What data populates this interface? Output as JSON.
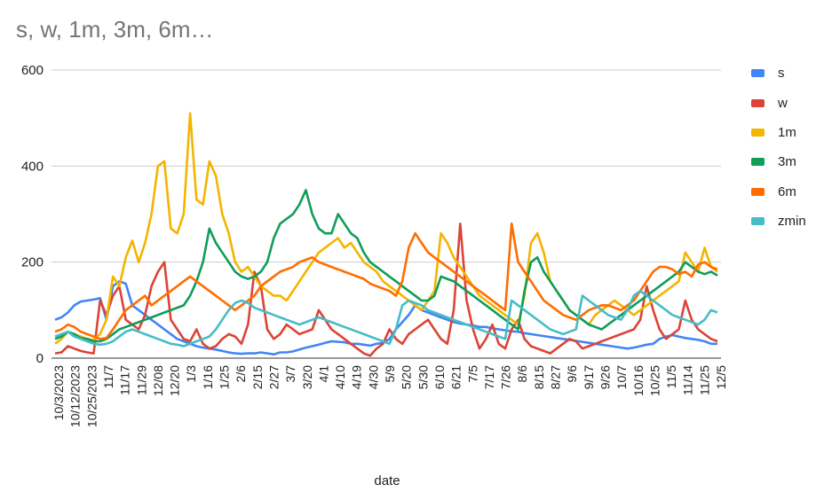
{
  "chart_data": {
    "type": "line",
    "title": "s, w, 1m, 3m, 6m…",
    "xlabel": "date",
    "ylabel": "",
    "ylim": [
      0,
      600
    ],
    "yticks": [
      0,
      200,
      400,
      600
    ],
    "grid": true,
    "legend_position": "right",
    "x_tick_labels": [
      "10/3/2023",
      "10/12/2023",
      "10/25/2023",
      "11/7",
      "11/17",
      "11/29",
      "12/08",
      "12/20",
      "1/3",
      "1/16",
      "1/25",
      "2/6",
      "2/15",
      "2/27",
      "3/7",
      "3/20",
      "4/1",
      "4/10",
      "4/19",
      "4/30",
      "5/9",
      "5/20",
      "5/30",
      "6/10",
      "6/21",
      "7/5",
      "7/17",
      "7/26",
      "8/6",
      "8/15",
      "8/27",
      "9/6",
      "9/17",
      "9/26",
      "10/7",
      "10/16",
      "10/25",
      "11/5",
      "11/14",
      "11/25",
      "12/5"
    ],
    "series": [
      {
        "name": "s",
        "color": "#4285f4",
        "values": [
          80,
          85,
          95,
          110,
          118,
          120,
          122,
          125,
          80,
          150,
          160,
          155,
          110,
          100,
          90,
          80,
          70,
          60,
          50,
          40,
          35,
          30,
          25,
          22,
          20,
          18,
          15,
          12,
          10,
          9,
          10,
          10,
          12,
          10,
          8,
          12,
          12,
          14,
          18,
          22,
          25,
          28,
          32,
          35,
          34,
          33,
          30,
          30,
          28,
          26,
          30,
          32,
          40,
          60,
          75,
          90,
          110,
          100,
          95,
          90,
          85,
          80,
          75,
          72,
          70,
          68,
          65,
          65,
          62,
          60,
          58,
          56,
          55,
          52,
          50,
          48,
          46,
          44,
          42,
          40,
          38,
          36,
          34,
          32,
          30,
          28,
          26,
          24,
          22,
          20,
          22,
          25,
          28,
          30,
          40,
          45,
          48,
          45,
          42,
          40,
          38,
          35,
          30,
          30
        ]
      },
      {
        "name": "w",
        "color": "#db4437",
        "values": [
          10,
          12,
          25,
          20,
          15,
          12,
          10,
          120,
          90,
          130,
          150,
          80,
          70,
          60,
          90,
          150,
          180,
          200,
          80,
          60,
          40,
          35,
          60,
          30,
          20,
          25,
          40,
          50,
          45,
          30,
          70,
          180,
          150,
          60,
          40,
          50,
          70,
          60,
          50,
          55,
          60,
          100,
          80,
          60,
          50,
          40,
          30,
          20,
          10,
          5,
          20,
          30,
          60,
          40,
          30,
          50,
          60,
          70,
          80,
          60,
          40,
          30,
          100,
          280,
          120,
          60,
          20,
          40,
          70,
          30,
          20,
          60,
          80,
          40,
          25,
          20,
          15,
          10,
          20,
          30,
          40,
          35,
          20,
          25,
          30,
          35,
          40,
          45,
          50,
          55,
          60,
          80,
          150,
          100,
          60,
          40,
          50,
          60,
          120,
          80,
          60,
          50,
          40,
          35
        ]
      },
      {
        "name": "1m",
        "color": "#f4b400",
        "values": [
          30,
          40,
          55,
          50,
          45,
          40,
          38,
          50,
          80,
          170,
          150,
          210,
          245,
          200,
          240,
          300,
          400,
          410,
          270,
          260,
          300,
          510,
          330,
          320,
          410,
          380,
          300,
          260,
          200,
          180,
          190,
          170,
          150,
          140,
          130,
          130,
          120,
          140,
          160,
          180,
          200,
          220,
          230,
          240,
          250,
          230,
          240,
          220,
          200,
          190,
          180,
          160,
          150,
          140,
          130,
          120,
          110,
          100,
          120,
          140,
          260,
          240,
          210,
          190,
          170,
          150,
          130,
          120,
          110,
          100,
          90,
          80,
          70,
          130,
          240,
          260,
          220,
          160,
          140,
          120,
          100,
          90,
          80,
          70,
          90,
          100,
          110,
          120,
          110,
          100,
          90,
          100,
          110,
          120,
          130,
          140,
          150,
          160,
          220,
          200,
          180,
          230,
          190,
          180
        ]
      },
      {
        "name": "3m",
        "color": "#0f9d58",
        "values": [
          40,
          45,
          55,
          50,
          42,
          40,
          35,
          35,
          40,
          50,
          60,
          65,
          70,
          75,
          80,
          85,
          90,
          95,
          100,
          105,
          110,
          130,
          160,
          200,
          270,
          240,
          220,
          200,
          180,
          170,
          165,
          170,
          180,
          200,
          250,
          280,
          290,
          300,
          320,
          350,
          300,
          270,
          260,
          260,
          300,
          280,
          260,
          250,
          220,
          200,
          190,
          180,
          170,
          160,
          150,
          140,
          130,
          120,
          120,
          130,
          170,
          165,
          160,
          150,
          140,
          130,
          120,
          110,
          100,
          90,
          80,
          70,
          60,
          140,
          200,
          210,
          180,
          160,
          140,
          120,
          100,
          90,
          80,
          70,
          65,
          60,
          70,
          80,
          90,
          100,
          110,
          120,
          130,
          140,
          150,
          160,
          170,
          180,
          200,
          190,
          180,
          175,
          180,
          172
        ]
      },
      {
        "name": "6m",
        "color": "#ff6d00",
        "values": [
          55,
          60,
          70,
          65,
          55,
          50,
          45,
          40,
          42,
          60,
          80,
          100,
          110,
          120,
          130,
          110,
          120,
          130,
          140,
          150,
          160,
          170,
          160,
          150,
          140,
          130,
          120,
          110,
          100,
          110,
          120,
          130,
          150,
          160,
          170,
          180,
          185,
          190,
          200,
          205,
          210,
          200,
          195,
          190,
          185,
          180,
          175,
          170,
          165,
          155,
          150,
          145,
          140,
          130,
          160,
          230,
          260,
          240,
          220,
          210,
          200,
          190,
          180,
          170,
          160,
          150,
          140,
          130,
          120,
          110,
          100,
          280,
          200,
          180,
          160,
          140,
          120,
          110,
          100,
          90,
          85,
          80,
          90,
          100,
          105,
          110,
          110,
          105,
          100,
          110,
          120,
          140,
          160,
          180,
          190,
          190,
          185,
          175,
          180,
          170,
          195,
          200,
          190,
          185
        ]
      },
      {
        "name": "zmin",
        "color": "#46bdc6",
        "values": [
          45,
          50,
          55,
          45,
          40,
          35,
          30,
          28,
          30,
          35,
          45,
          55,
          60,
          55,
          50,
          45,
          40,
          35,
          30,
          28,
          25,
          30,
          35,
          40,
          45,
          60,
          80,
          100,
          115,
          120,
          115,
          105,
          100,
          95,
          90,
          85,
          80,
          75,
          70,
          75,
          80,
          85,
          80,
          75,
          70,
          65,
          60,
          55,
          50,
          45,
          40,
          35,
          30,
          60,
          110,
          120,
          115,
          110,
          100,
          95,
          90,
          85,
          80,
          75,
          70,
          65,
          60,
          55,
          50,
          45,
          40,
          120,
          110,
          100,
          90,
          80,
          70,
          60,
          55,
          50,
          55,
          60,
          130,
          120,
          110,
          100,
          90,
          85,
          80,
          100,
          130,
          140,
          130,
          120,
          110,
          100,
          90,
          85,
          80,
          75,
          70,
          80,
          100,
          95
        ]
      }
    ]
  }
}
